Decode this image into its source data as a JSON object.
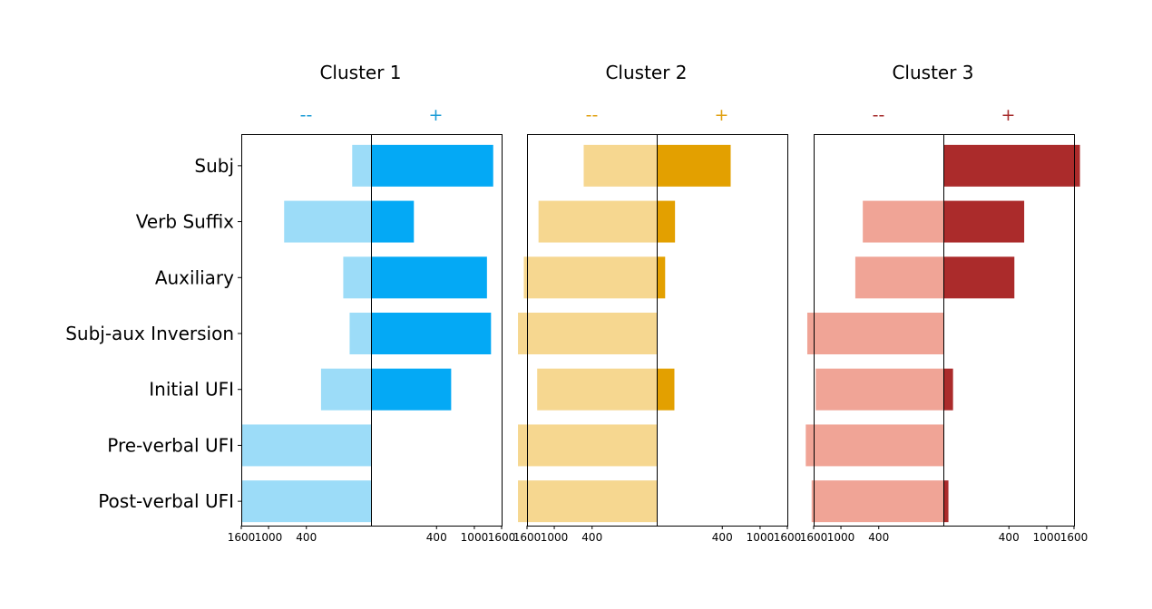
{
  "chart_data": {
    "type": "bar",
    "orientation": "horizontal-diverging",
    "x_scale": "sqrt",
    "xlim": [
      -1600,
      1600
    ],
    "x_ticks": [
      -1600,
      -1000,
      -400,
      400,
      1000,
      1600
    ],
    "x_tick_labels": [
      "1600",
      "1000",
      "400",
      "400",
      "1000",
      "1600"
    ],
    "categories": [
      "Subj",
      "Verb Suffix",
      "Auxiliary",
      "Subj-aux Inversion",
      "Initial UFI",
      "Pre-verbal UFI",
      "Post-verbal UFI"
    ],
    "panels": [
      {
        "title": "Cluster 1",
        "neg_label": "--",
        "pos_label": "+",
        "label_color": "#1a9bd6",
        "neg_color": "#9cdcf8",
        "pos_color": "#04a9f5",
        "neg_values": [
          35,
          720,
          75,
          45,
          240,
          1600,
          1580
        ],
        "pos_values": [
          1400,
          170,
          1260,
          1350,
          600,
          0,
          0
        ]
      },
      {
        "title": "Cluster 2",
        "neg_label": "--",
        "pos_label": "+",
        "label_color": "#e0a010",
        "neg_color": "#f6d790",
        "pos_color": "#e3a000",
        "neg_values": [
          510,
          1330,
          1680,
          1830,
          1360,
          1830,
          1830
        ],
        "pos_values": [
          510,
          30,
          6,
          0,
          28,
          0,
          0
        ]
      },
      {
        "title": "Cluster 3",
        "neg_label": "--",
        "pos_label": "+",
        "label_color": "#a52a2a",
        "neg_color": "#f0a496",
        "pos_color": "#ab2b2b",
        "neg_values": [
          0,
          620,
          740,
          1760,
          1550,
          1800,
          1650
        ],
        "pos_values": [
          1750,
          610,
          470,
          0,
          8,
          0,
          2
        ]
      }
    ]
  }
}
